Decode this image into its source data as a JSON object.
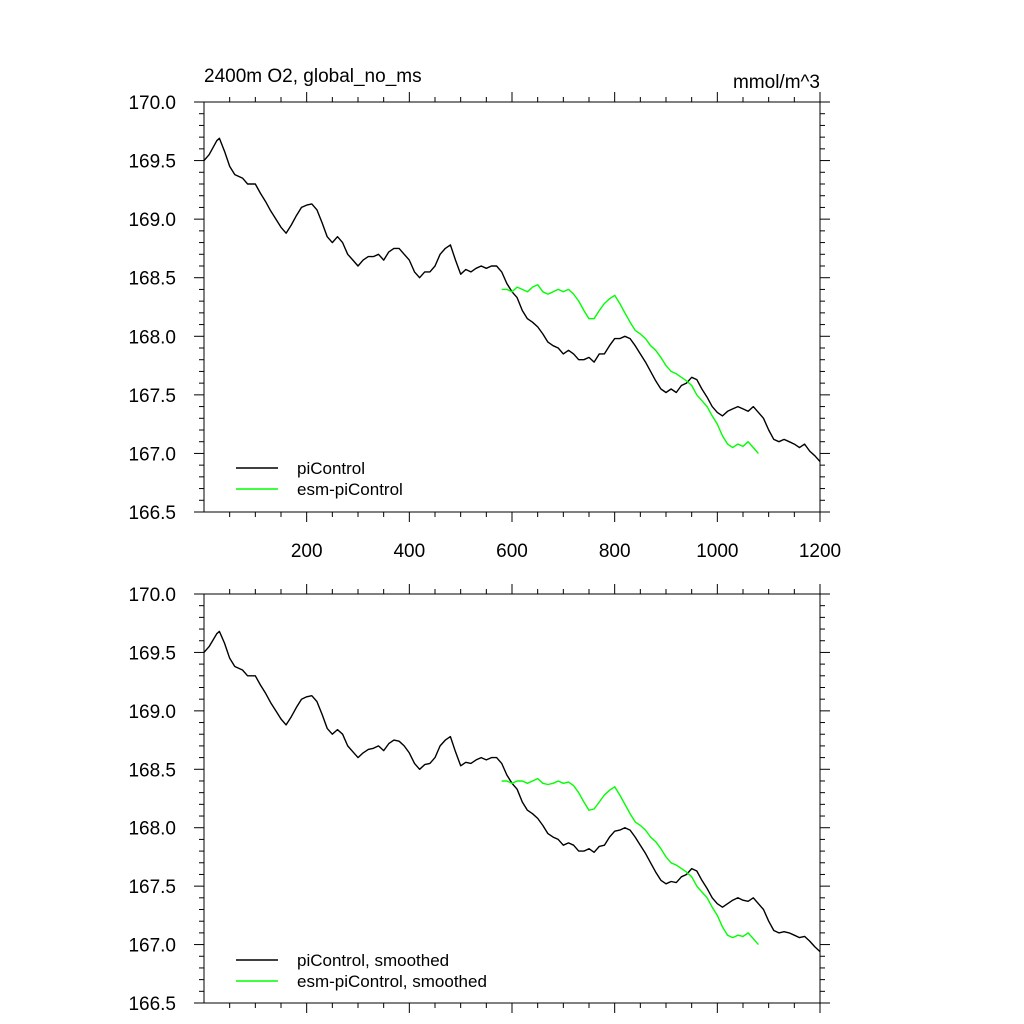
{
  "chart_data": [
    {
      "type": "line",
      "title": "2400m O2, global_no_ms",
      "units": "mmol/m^3",
      "xlim": [
        0,
        1200
      ],
      "ylim": [
        166.5,
        170.0
      ],
      "xticks": [
        200,
        400,
        600,
        800,
        1000,
        1200
      ],
      "x_tick_labels": [
        "200",
        "400",
        "600",
        "800",
        "1000",
        "1200"
      ],
      "yticks": [
        166.5,
        167.0,
        167.5,
        168.0,
        168.5,
        169.0,
        169.5,
        170.0
      ],
      "y_tick_labels": [
        "166.5",
        "167.0",
        "167.5",
        "168.0",
        "168.5",
        "169.0",
        "169.5",
        "170.0"
      ],
      "legend_position": "bottom-left",
      "series": [
        {
          "name": "piControl",
          "color": "#000000",
          "x": [
            0,
            10,
            25,
            30,
            40,
            50,
            60,
            75,
            85,
            100,
            110,
            120,
            130,
            140,
            150,
            160,
            170,
            180,
            190,
            200,
            210,
            220,
            230,
            240,
            250,
            260,
            270,
            280,
            290,
            300,
            310,
            320,
            330,
            340,
            350,
            360,
            370,
            380,
            390,
            400,
            410,
            420,
            430,
            440,
            450,
            460,
            470,
            480,
            490,
            500,
            510,
            520,
            530,
            540,
            550,
            560,
            570,
            580,
            590,
            600,
            610,
            620,
            630,
            640,
            650,
            660,
            670,
            680,
            690,
            700,
            710,
            720,
            730,
            740,
            750,
            760,
            770,
            780,
            790,
            800,
            810,
            820,
            830,
            840,
            850,
            860,
            870,
            880,
            890,
            900,
            910,
            920,
            930,
            940,
            950,
            960,
            970,
            980,
            990,
            1000,
            1010,
            1020,
            1030,
            1040,
            1050,
            1060,
            1070,
            1080,
            1090,
            1100,
            1110,
            1120,
            1130,
            1140,
            1150,
            1160,
            1170,
            1180,
            1190,
            1200
          ],
          "y": [
            169.5,
            169.55,
            169.67,
            169.69,
            169.58,
            169.45,
            169.38,
            169.35,
            169.3,
            169.3,
            169.22,
            169.15,
            169.07,
            169.0,
            168.93,
            168.88,
            168.95,
            169.03,
            169.1,
            169.12,
            169.13,
            169.08,
            168.97,
            168.85,
            168.8,
            168.85,
            168.8,
            168.7,
            168.65,
            168.6,
            168.65,
            168.68,
            168.68,
            168.7,
            168.65,
            168.72,
            168.75,
            168.75,
            168.7,
            168.65,
            168.55,
            168.5,
            168.55,
            168.55,
            168.6,
            168.7,
            168.75,
            168.78,
            168.65,
            168.53,
            168.57,
            168.55,
            168.58,
            168.6,
            168.58,
            168.6,
            168.6,
            168.55,
            168.45,
            168.38,
            168.33,
            168.22,
            168.15,
            168.12,
            168.08,
            168.02,
            167.95,
            167.92,
            167.9,
            167.85,
            167.88,
            167.85,
            167.8,
            167.8,
            167.82,
            167.78,
            167.85,
            167.85,
            167.92,
            167.98,
            167.98,
            168.0,
            167.98,
            167.92,
            167.85,
            167.78,
            167.7,
            167.62,
            167.55,
            167.52,
            167.55,
            167.52,
            167.58,
            167.6,
            167.65,
            167.63,
            167.55,
            167.48,
            167.4,
            167.35,
            167.32,
            167.36,
            167.38,
            167.4,
            167.38,
            167.36,
            167.4,
            167.35,
            167.3,
            167.2,
            167.12,
            167.1,
            167.12,
            167.1,
            167.08,
            167.05,
            167.08,
            167.02,
            166.98,
            166.93
          ]
        },
        {
          "name": "esm-piControl",
          "color": "#00ff00",
          "x": [
            580,
            590,
            600,
            610,
            620,
            630,
            640,
            650,
            660,
            670,
            680,
            690,
            700,
            710,
            720,
            730,
            740,
            750,
            760,
            770,
            780,
            790,
            800,
            810,
            820,
            830,
            840,
            850,
            860,
            870,
            880,
            890,
            900,
            910,
            920,
            930,
            940,
            950,
            960,
            970,
            980,
            990,
            1000,
            1010,
            1020,
            1030,
            1040,
            1050,
            1060,
            1070,
            1080
          ],
          "y": [
            168.4,
            168.4,
            168.38,
            168.42,
            168.4,
            168.38,
            168.42,
            168.44,
            168.38,
            168.36,
            168.38,
            168.4,
            168.38,
            168.4,
            168.36,
            168.3,
            168.22,
            168.15,
            168.15,
            168.22,
            168.28,
            168.32,
            168.35,
            168.28,
            168.2,
            168.12,
            168.05,
            168.02,
            167.98,
            167.92,
            167.88,
            167.82,
            167.75,
            167.7,
            167.68,
            167.65,
            167.62,
            167.58,
            167.5,
            167.45,
            167.4,
            167.32,
            167.25,
            167.15,
            167.08,
            167.05,
            167.08,
            167.06,
            167.1,
            167.05,
            167.0
          ]
        }
      ]
    },
    {
      "type": "line",
      "title": "",
      "xlim": [
        0,
        1200
      ],
      "ylim": [
        166.5,
        170.0
      ],
      "yticks": [
        166.5,
        167.0,
        167.5,
        168.0,
        168.5,
        169.0,
        169.5,
        170.0
      ],
      "y_tick_labels": [
        "166.5",
        "167.0",
        "167.5",
        "168.0",
        "168.5",
        "169.0",
        "169.5",
        "170.0"
      ],
      "legend_position": "bottom-left",
      "series": [
        {
          "name": "piControl, smoothed",
          "color": "#000000",
          "x": [
            0,
            10,
            25,
            30,
            40,
            50,
            60,
            75,
            85,
            100,
            110,
            120,
            130,
            140,
            150,
            160,
            170,
            180,
            190,
            200,
            210,
            220,
            230,
            240,
            250,
            260,
            270,
            280,
            290,
            300,
            310,
            320,
            330,
            340,
            350,
            360,
            370,
            380,
            390,
            400,
            410,
            420,
            430,
            440,
            450,
            460,
            470,
            480,
            490,
            500,
            510,
            520,
            530,
            540,
            550,
            560,
            570,
            580,
            590,
            600,
            610,
            620,
            630,
            640,
            650,
            660,
            670,
            680,
            690,
            700,
            710,
            720,
            730,
            740,
            750,
            760,
            770,
            780,
            790,
            800,
            810,
            820,
            830,
            840,
            850,
            860,
            870,
            880,
            890,
            900,
            910,
            920,
            930,
            940,
            950,
            960,
            970,
            980,
            990,
            1000,
            1010,
            1020,
            1030,
            1040,
            1050,
            1060,
            1070,
            1080,
            1090,
            1100,
            1110,
            1120,
            1130,
            1140,
            1150,
            1160,
            1170,
            1180,
            1190,
            1200
          ],
          "y": [
            169.5,
            169.55,
            169.66,
            169.68,
            169.58,
            169.45,
            169.38,
            169.35,
            169.3,
            169.3,
            169.22,
            169.15,
            169.07,
            169.0,
            168.93,
            168.88,
            168.95,
            169.03,
            169.1,
            169.12,
            169.13,
            169.08,
            168.97,
            168.85,
            168.8,
            168.84,
            168.8,
            168.7,
            168.65,
            168.6,
            168.64,
            168.67,
            168.68,
            168.7,
            168.66,
            168.72,
            168.75,
            168.74,
            168.7,
            168.64,
            168.55,
            168.5,
            168.54,
            168.55,
            168.6,
            168.7,
            168.75,
            168.78,
            168.65,
            168.53,
            168.56,
            168.55,
            168.58,
            168.6,
            168.58,
            168.6,
            168.6,
            168.55,
            168.45,
            168.38,
            168.33,
            168.22,
            168.15,
            168.12,
            168.08,
            168.02,
            167.95,
            167.92,
            167.9,
            167.85,
            167.87,
            167.85,
            167.8,
            167.8,
            167.82,
            167.79,
            167.84,
            167.85,
            167.92,
            167.97,
            167.98,
            168.0,
            167.98,
            167.92,
            167.85,
            167.78,
            167.7,
            167.62,
            167.55,
            167.52,
            167.54,
            167.53,
            167.58,
            167.6,
            167.65,
            167.63,
            167.55,
            167.48,
            167.4,
            167.35,
            167.32,
            167.35,
            167.38,
            167.4,
            167.38,
            167.37,
            167.4,
            167.35,
            167.3,
            167.2,
            167.12,
            167.1,
            167.11,
            167.1,
            167.08,
            167.06,
            167.07,
            167.03,
            166.98,
            166.94
          ]
        },
        {
          "name": "esm-piControl, smoothed",
          "color": "#00ff00",
          "x": [
            580,
            590,
            600,
            610,
            620,
            630,
            640,
            650,
            660,
            670,
            680,
            690,
            700,
            710,
            720,
            730,
            740,
            750,
            760,
            770,
            780,
            790,
            800,
            810,
            820,
            830,
            840,
            850,
            860,
            870,
            880,
            890,
            900,
            910,
            920,
            930,
            940,
            950,
            960,
            970,
            980,
            990,
            1000,
            1010,
            1020,
            1030,
            1040,
            1050,
            1060,
            1070,
            1080
          ],
          "y": [
            168.4,
            168.4,
            168.38,
            168.4,
            168.4,
            168.38,
            168.4,
            168.42,
            168.38,
            168.37,
            168.38,
            168.4,
            168.38,
            168.39,
            168.36,
            168.3,
            168.22,
            168.15,
            168.16,
            168.22,
            168.28,
            168.32,
            168.35,
            168.28,
            168.2,
            168.12,
            168.05,
            168.02,
            167.98,
            167.92,
            167.88,
            167.82,
            167.75,
            167.7,
            167.68,
            167.65,
            167.62,
            167.58,
            167.5,
            167.45,
            167.4,
            167.32,
            167.25,
            167.15,
            167.08,
            167.06,
            167.08,
            167.07,
            167.1,
            167.05,
            167.0
          ]
        }
      ]
    }
  ]
}
